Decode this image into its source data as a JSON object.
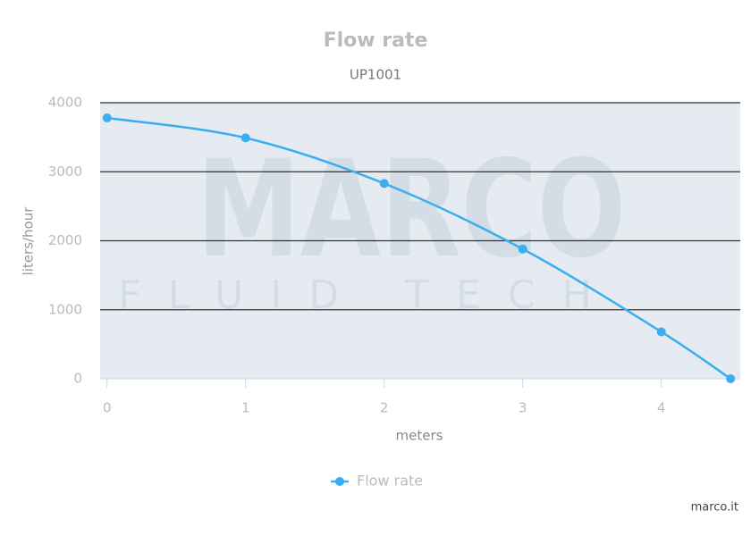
{
  "chart_data": {
    "type": "line",
    "title": "Flow rate",
    "subtitle": "UP1001",
    "x_label": "meters",
    "y_label": "liters/hour",
    "x": [
      0,
      1,
      2,
      3,
      4,
      4.5
    ],
    "series": [
      {
        "name": "Flow rate",
        "color": "#3aaef0",
        "values": [
          3780,
          3490,
          2830,
          1880,
          680,
          0
        ]
      }
    ],
    "xlim": [
      -0.05,
      4.57
    ],
    "xticks": [
      0,
      1,
      2,
      3,
      4
    ],
    "ylim": [
      0,
      4000
    ],
    "yticks": [
      0,
      1000,
      2000,
      3000,
      4000
    ],
    "grid": true,
    "smooth": true,
    "legend": "bottom",
    "watermark": [
      "MARCO",
      "FLUID TECH"
    ],
    "credit": "marco.it"
  }
}
